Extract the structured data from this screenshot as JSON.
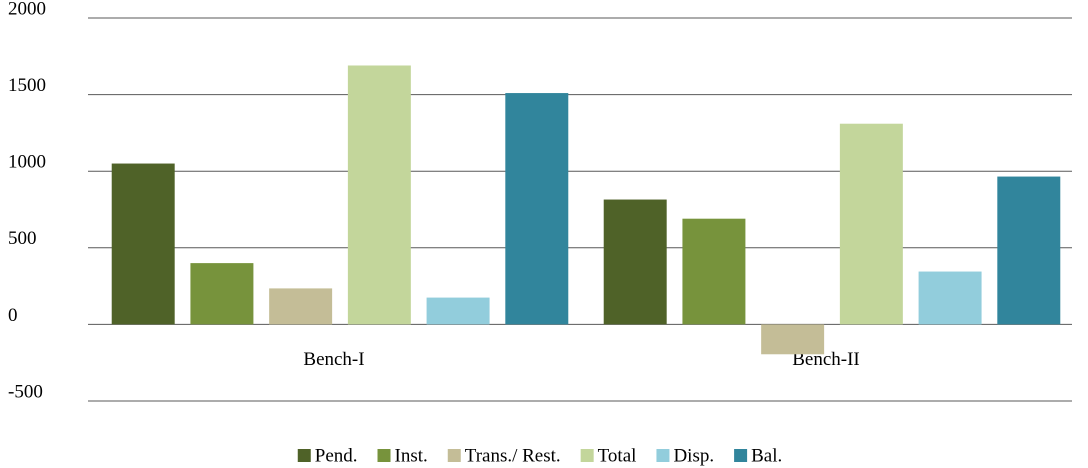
{
  "chart_data": {
    "type": "bar",
    "categories": [
      "Bench-I",
      "Bench-II"
    ],
    "series": [
      {
        "name": "Pend.",
        "color": "#4f6228",
        "values": [
          1050,
          815
        ]
      },
      {
        "name": "Inst.",
        "color": "#77933c",
        "values": [
          400,
          690
        ]
      },
      {
        "name": "Trans./ Rest.",
        "color": "#c4bd97",
        "values": [
          235,
          -195
        ]
      },
      {
        "name": "Total",
        "color": "#c3d69b",
        "values": [
          1690,
          1310
        ]
      },
      {
        "name": "Disp.",
        "color": "#92cddc",
        "values": [
          175,
          345
        ]
      },
      {
        "name": "Bal.",
        "color": "#31859c",
        "values": [
          1510,
          965
        ]
      }
    ],
    "ylim": [
      -500,
      2000
    ],
    "yticks": [
      -500,
      0,
      500,
      1000,
      1500,
      2000
    ],
    "grid": true,
    "legend": "bottom"
  }
}
